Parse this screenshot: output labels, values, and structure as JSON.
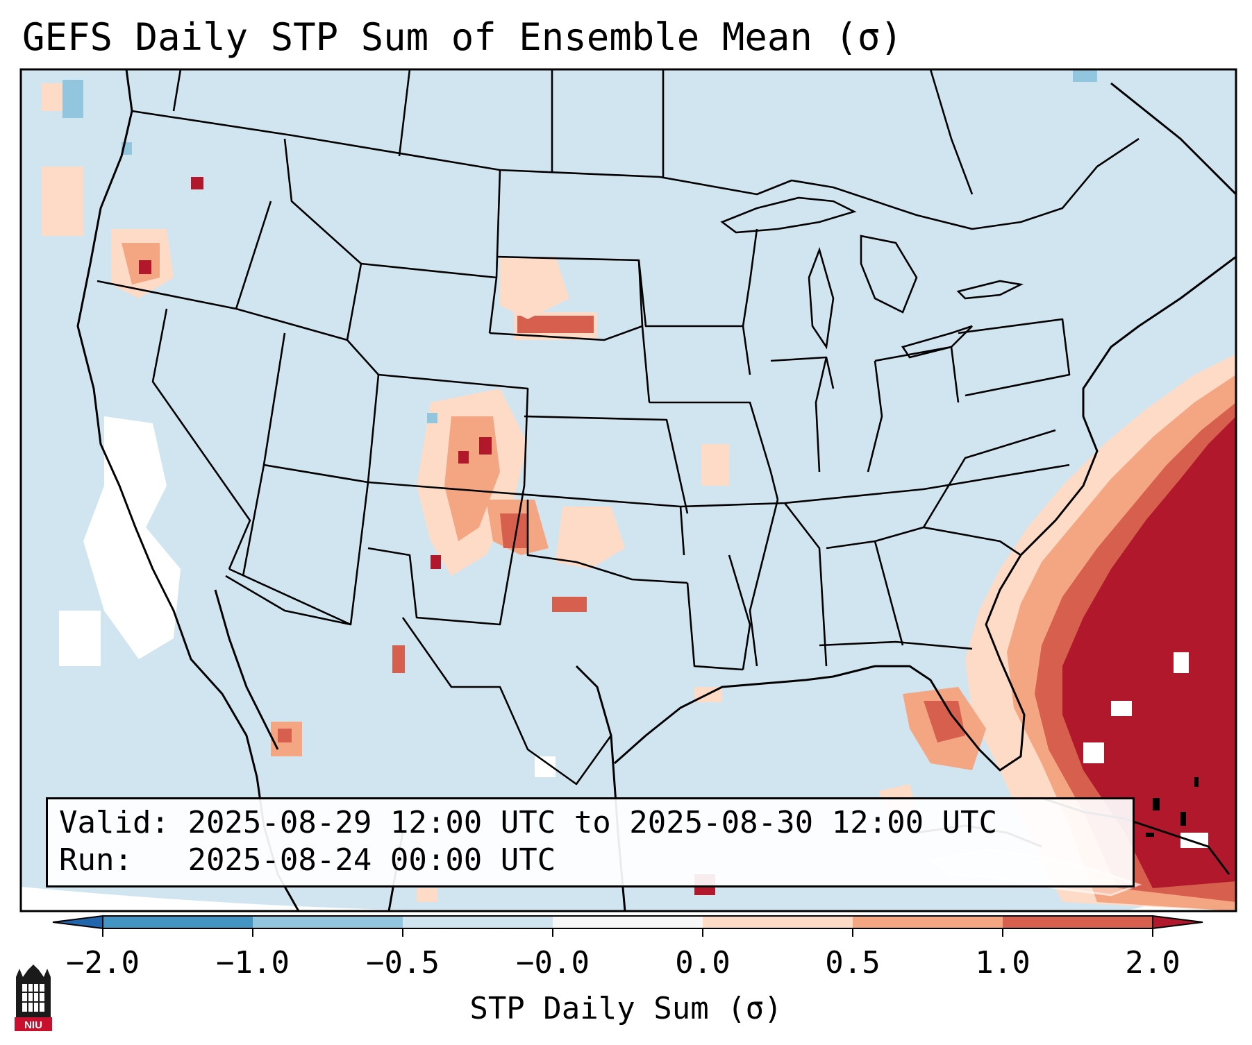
{
  "title": "GEFS Daily STP Sum of Ensemble Mean (σ)",
  "map": {
    "background_color": "#d1e5f0",
    "land_outline_color": "#000000",
    "regions": "CONUS, southern Canada, northern Mexico, Gulf of Mexico, Cuba, Bahamas"
  },
  "info": {
    "valid_label": "Valid:",
    "valid_value": "2025-08-29 12:00 UTC to 2025-08-30 12:00 UTC",
    "run_label": "Run:",
    "run_value": "2025-08-24 00:00 UTC"
  },
  "colorbar": {
    "title": "STP Daily Sum (σ)",
    "ticks": [
      "−2.0",
      "−1.0",
      "−0.5",
      "−0.0",
      "0.0",
      "0.5",
      "1.0",
      "2.0"
    ],
    "colors": [
      "#4393c3",
      "#92c5de",
      "#d1e5f0",
      "#f7f7f7",
      "#fddbc7",
      "#f4a582",
      "#d6604d"
    ],
    "extend_low_color": "#2166ac",
    "extend_high_color": "#b2182b"
  },
  "logo": {
    "text": "NIU",
    "icon": "niu-logo-icon"
  }
}
